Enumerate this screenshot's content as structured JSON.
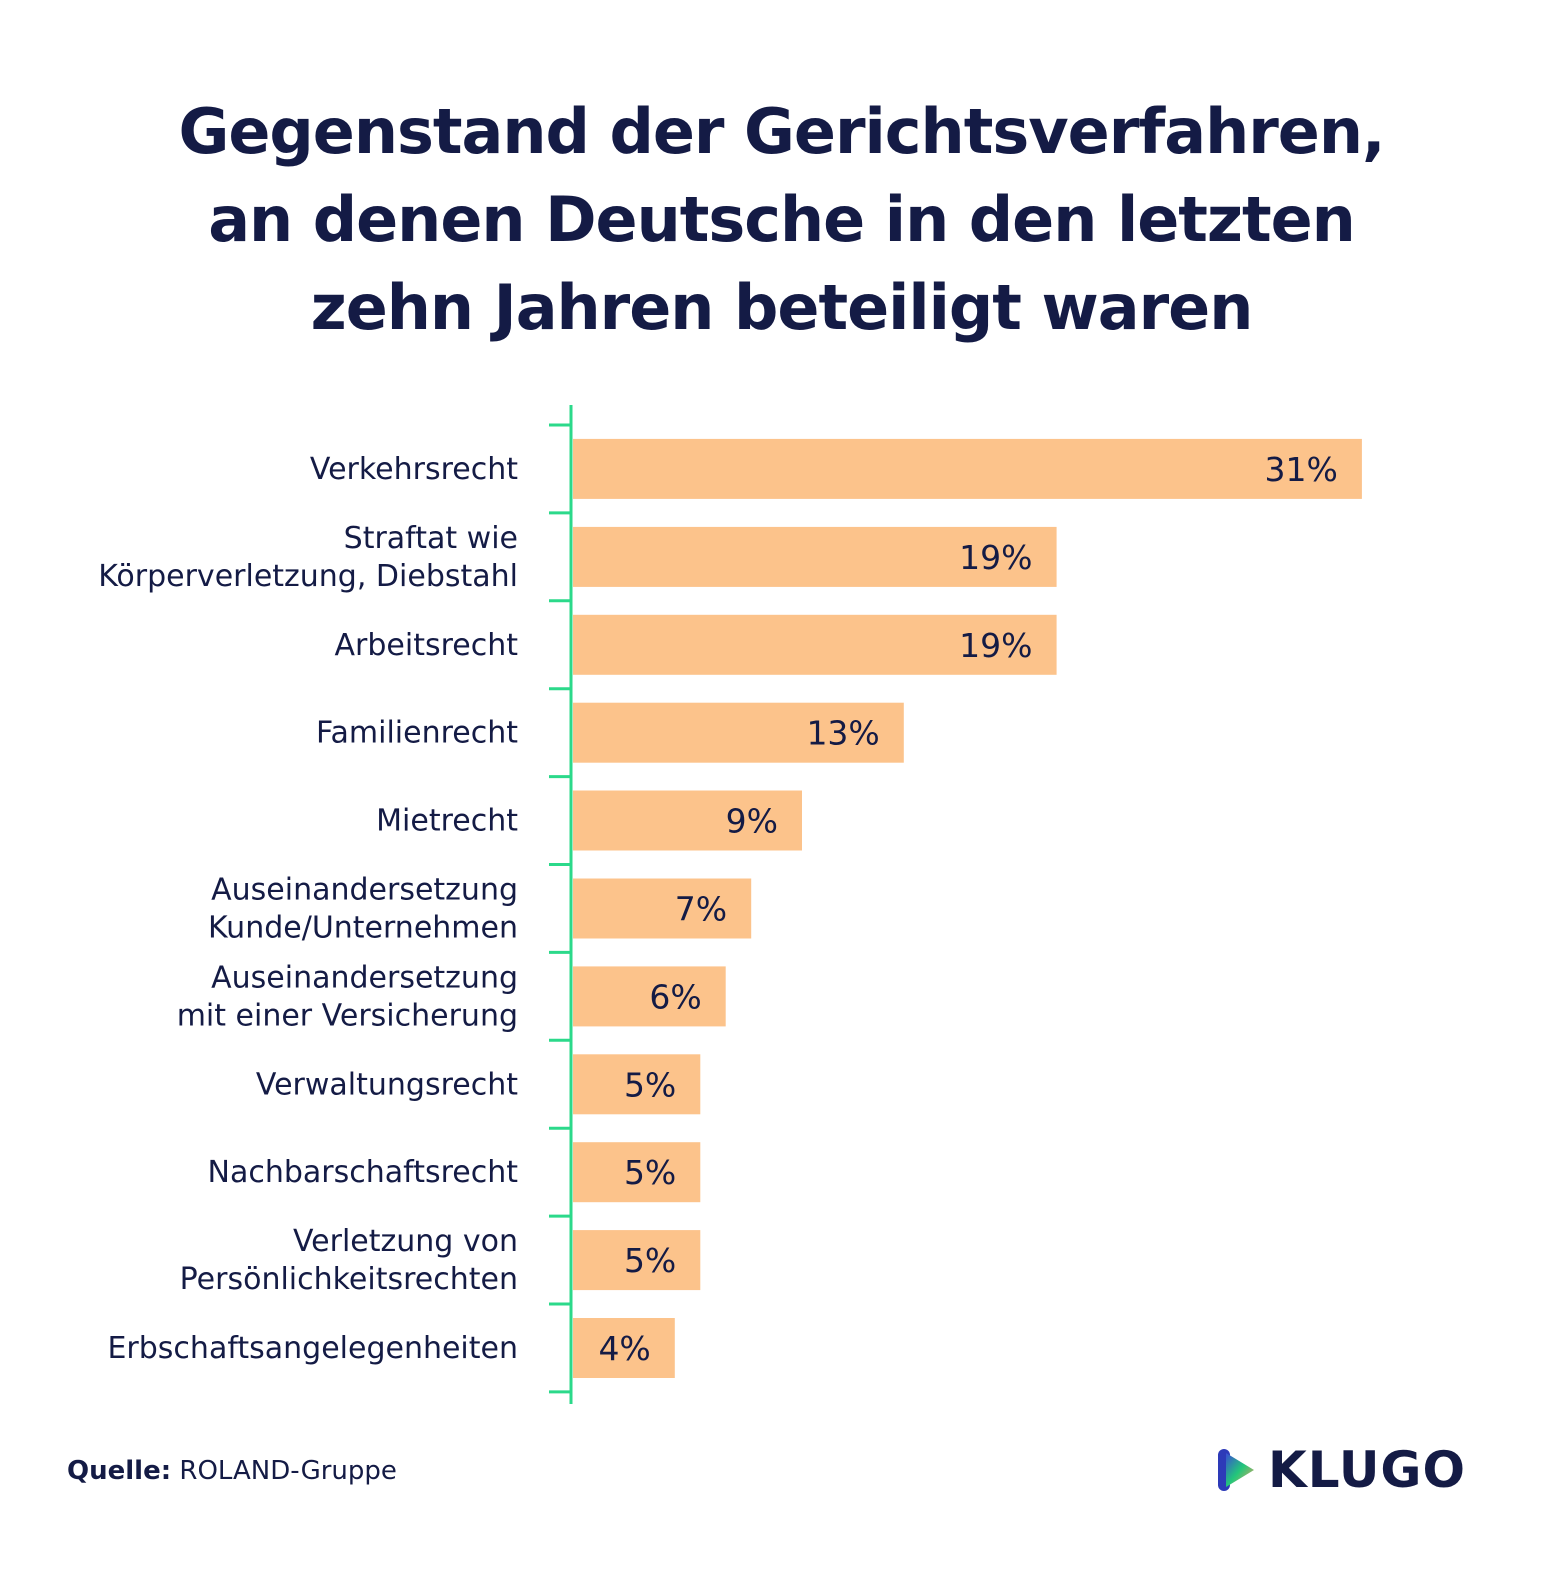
{
  "title_lines": [
    "Gegenstand der Gerichtsverfahren,",
    "an denen Deutsche in den letzten",
    "zehn Jahren beteiligt waren"
  ],
  "source_label": "Quelle:",
  "source_value": "ROLAND-Gruppe",
  "brand": "KLUGO",
  "colors": {
    "bar": "#fcc38b",
    "axis": "#2bd98a",
    "text": "#141b45"
  },
  "chart_data": {
    "type": "bar",
    "orientation": "horizontal",
    "title": "Gegenstand der Gerichtsverfahren, an denen Deutsche in den letzten zehn Jahren beteiligt waren",
    "xlabel": "",
    "ylabel": "",
    "xlim": [
      0,
      34
    ],
    "grid": false,
    "categories": [
      [
        "Verkehrsrecht"
      ],
      [
        "Straftat wie",
        "Körperverletzung, Diebstahl"
      ],
      [
        "Arbeitsrecht"
      ],
      [
        "Familienrecht"
      ],
      [
        "Mietrecht"
      ],
      [
        "Auseinandersetzung",
        "Kunde/Unternehmen"
      ],
      [
        "Auseinandersetzung",
        "mit einer Versicherung"
      ],
      [
        "Verwaltungsrecht"
      ],
      [
        "Nachbarschaftsrecht"
      ],
      [
        "Verletzung von",
        "Persönlichkeitsrechten"
      ],
      [
        "Erbschaftsangelegenheiten"
      ]
    ],
    "values": [
      31,
      19,
      19,
      13,
      9,
      7,
      6,
      5,
      5,
      5,
      4
    ],
    "value_labels": [
      "31%",
      "19%",
      "19%",
      "13%",
      "9%",
      "7%",
      "6%",
      "5%",
      "5%",
      "5%",
      "4%"
    ]
  }
}
